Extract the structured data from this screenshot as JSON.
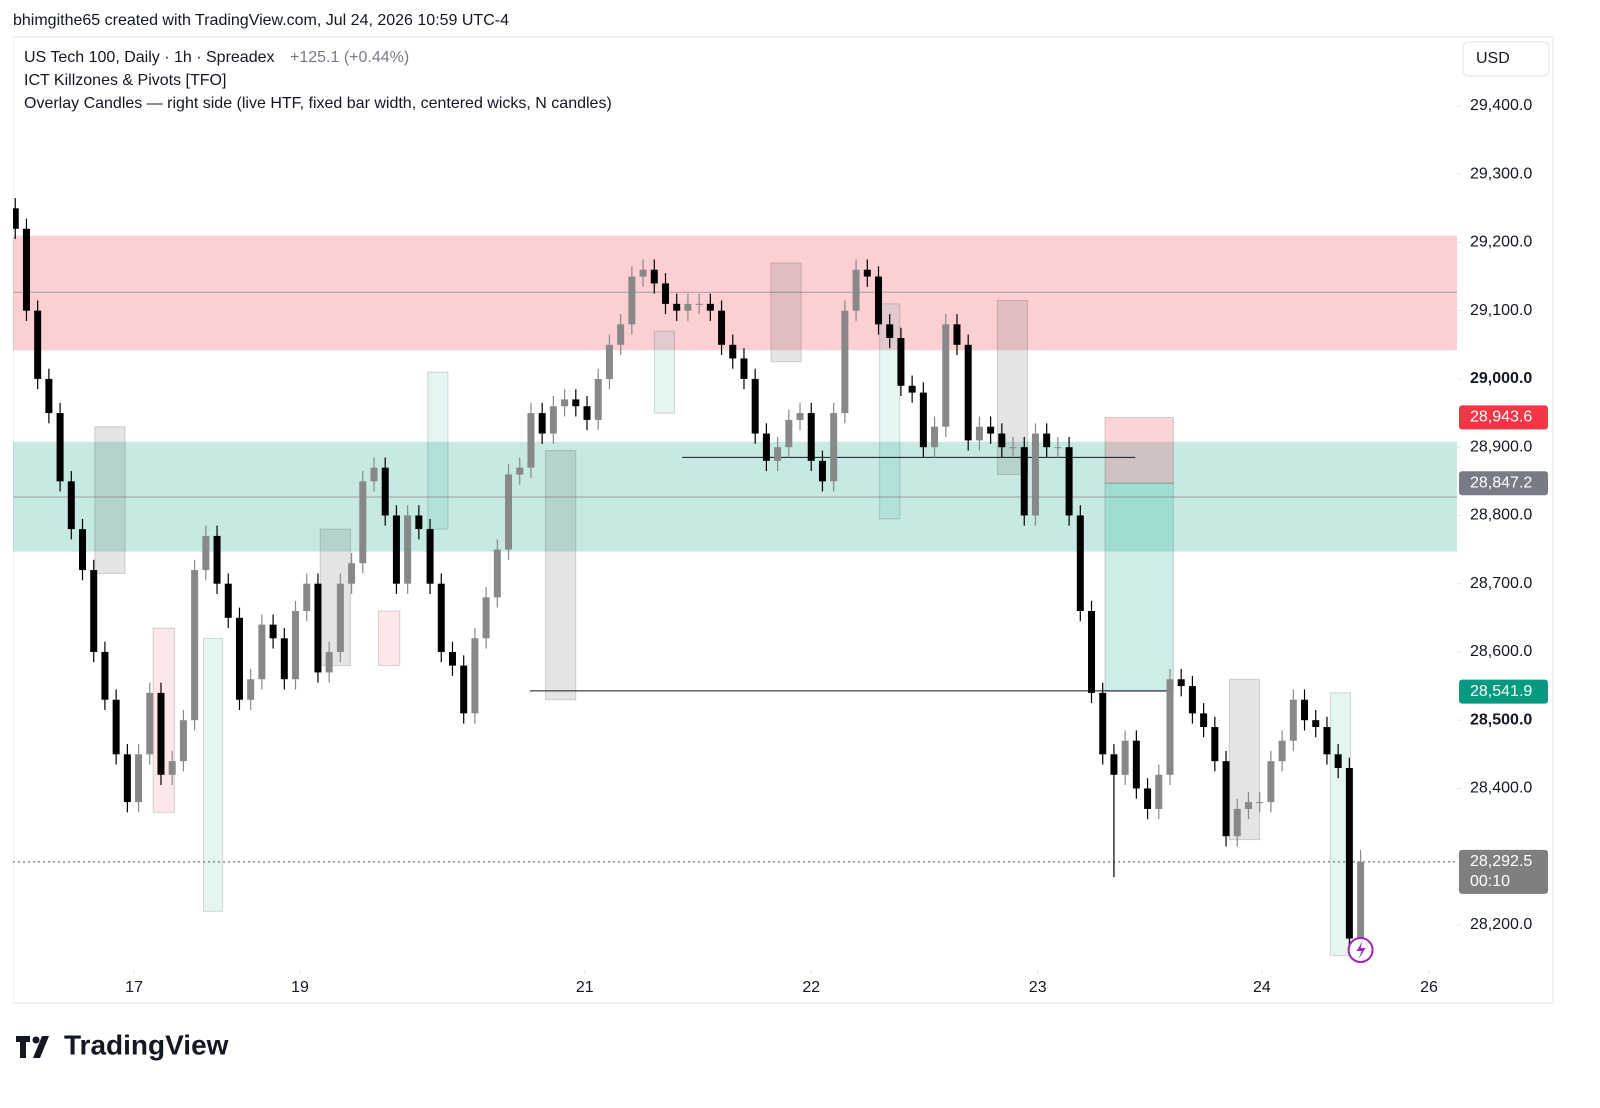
{
  "header": {
    "credit": "bhimgithe65 created with TradingView.com, Jul 24, 2026 10:59 UTC-4"
  },
  "legend": {
    "symbol": "US Tech 100, Daily · 1h · Spreadex",
    "change": "+125.1 (+0.44%)",
    "indicator_1": "ICT Killzones & Pivots [TFO]",
    "indicator_2": "Overlay Candles — right side (live HTF, fixed bar width, centered wicks, N candles)"
  },
  "currency": "USD",
  "footer": {
    "brand": "TradingView"
  },
  "chart_data": {
    "type": "candlestick",
    "up_color": "#888888",
    "down_color": "#000000",
    "open": [
      29250,
      29220,
      29100,
      29000,
      28950,
      28850,
      28780,
      28720,
      28600,
      28530,
      28450,
      28380,
      28450,
      28540,
      28420,
      28440,
      28500,
      28720,
      28770,
      28700,
      28650,
      28530,
      28560,
      28640,
      28620,
      28560,
      28660,
      28700,
      28570,
      28600,
      28700,
      28730,
      28850,
      28870,
      28800,
      28700,
      28800,
      28780,
      28700,
      28600,
      28580,
      28510,
      28620,
      28680,
      28750,
      28860,
      28870,
      28950,
      28920,
      28960,
      28970,
      28960,
      28940,
      29000,
      29050,
      29080,
      29150,
      29160,
      29140,
      29110,
      29100,
      29110,
      29110,
      29100,
      29050,
      29030,
      29000,
      28920,
      28880,
      28900,
      28940,
      28950,
      28880,
      28850,
      28950,
      29100,
      29160,
      29150,
      29080,
      29060,
      28990,
      28980,
      28900,
      28930,
      29080,
      29050,
      28910,
      28930,
      28920,
      28900,
      28900,
      28800,
      28920,
      28900,
      28900,
      28800,
      28660,
      28540,
      28450,
      28420,
      28470,
      28400,
      28370,
      28420,
      28560,
      28550,
      28510,
      28490,
      28440,
      28330,
      28370,
      28380,
      28380,
      28440,
      28470,
      28530,
      28500,
      28490,
      28450,
      28430,
      28180
    ],
    "high": [
      29265,
      29235,
      29115,
      29015,
      28965,
      28865,
      28795,
      28735,
      28615,
      28545,
      28465,
      28465,
      28555,
      28555,
      28455,
      28515,
      28735,
      28785,
      28785,
      28715,
      28665,
      28575,
      28655,
      28655,
      28635,
      28675,
      28715,
      28715,
      28615,
      28715,
      28745,
      28865,
      28885,
      28885,
      28815,
      28815,
      28815,
      28795,
      28715,
      28615,
      28595,
      28635,
      28695,
      28765,
      28875,
      28885,
      28965,
      28965,
      28975,
      28985,
      28985,
      28975,
      29015,
      29065,
      29095,
      29165,
      29175,
      29175,
      29155,
      29125,
      29125,
      29125,
      29125,
      29115,
      29065,
      29045,
      29015,
      28935,
      28915,
      28955,
      28965,
      28965,
      28895,
      28965,
      29115,
      29175,
      29175,
      29165,
      29095,
      29075,
      29005,
      28995,
      28945,
      29095,
      29095,
      29065,
      28945,
      28945,
      28935,
      28915,
      28915,
      28935,
      28935,
      28915,
      28915,
      28815,
      28675,
      28555,
      28465,
      28485,
      28485,
      28415,
      28435,
      28575,
      28575,
      28565,
      28525,
      28505,
      28455,
      28385,
      28395,
      28395,
      28455,
      28485,
      28545,
      28545,
      28515,
      28505,
      28465,
      28445,
      28310
    ],
    "low": [
      29205,
      29085,
      28985,
      28935,
      28835,
      28765,
      28705,
      28585,
      28515,
      28435,
      28365,
      28365,
      28435,
      28405,
      28405,
      28425,
      28485,
      28705,
      28685,
      28635,
      28515,
      28515,
      28545,
      28605,
      28545,
      28545,
      28645,
      28555,
      28555,
      28585,
      28685,
      28715,
      28835,
      28785,
      28685,
      28685,
      28765,
      28685,
      28585,
      28565,
      28495,
      28495,
      28605,
      28665,
      28735,
      28845,
      28855,
      28905,
      28905,
      28945,
      28945,
      28925,
      28925,
      28985,
      29035,
      29065,
      29135,
      29125,
      29095,
      29085,
      29085,
      29095,
      29085,
      29035,
      29015,
      28985,
      28905,
      28865,
      28865,
      28885,
      28925,
      28865,
      28835,
      28835,
      28935,
      29085,
      29135,
      29065,
      29045,
      28975,
      28965,
      28885,
      28885,
      28915,
      29035,
      28895,
      28895,
      28905,
      28885,
      28885,
      28785,
      28785,
      28885,
      28885,
      28785,
      28645,
      28525,
      28435,
      28270,
      28405,
      28385,
      28355,
      28355,
      28405,
      28535,
      28495,
      28475,
      28425,
      28315,
      28315,
      28355,
      28365,
      28365,
      28425,
      28455,
      28485,
      28475,
      28435,
      28415,
      28165,
      28165
    ],
    "close": [
      29220,
      29100,
      29000,
      28950,
      28850,
      28780,
      28720,
      28600,
      28530,
      28450,
      28380,
      28450,
      28540,
      28420,
      28440,
      28500,
      28720,
      28770,
      28700,
      28650,
      28530,
      28560,
      28640,
      28620,
      28560,
      28660,
      28700,
      28570,
      28600,
      28700,
      28730,
      28850,
      28870,
      28800,
      28700,
      28800,
      28780,
      28700,
      28600,
      28580,
      28510,
      28620,
      28680,
      28750,
      28860,
      28870,
      28950,
      28920,
      28960,
      28970,
      28960,
      28940,
      29000,
      29050,
      29080,
      29150,
      29160,
      29140,
      29110,
      29100,
      29110,
      29110,
      29100,
      29050,
      29030,
      29000,
      28920,
      28880,
      28900,
      28940,
      28950,
      28880,
      28850,
      28950,
      29100,
      29160,
      29150,
      29080,
      29060,
      28990,
      28980,
      28900,
      28930,
      29080,
      29050,
      28910,
      28930,
      28920,
      28900,
      28900,
      28800,
      28920,
      28900,
      28900,
      28800,
      28660,
      28540,
      28450,
      28420,
      28470,
      28400,
      28370,
      28420,
      28560,
      28550,
      28510,
      28490,
      28440,
      28330,
      28370,
      28380,
      28380,
      28440,
      28470,
      28530,
      28500,
      28490,
      28450,
      28430,
      28180,
      28292.5
    ],
    "xlim": [
      -0.2,
      128.6
    ],
    "xticks": [
      {
        "value": 10.6,
        "label": "17"
      },
      {
        "value": 25.4,
        "label": "19"
      },
      {
        "value": 50.8,
        "label": "21"
      },
      {
        "value": 71.0,
        "label": "22"
      },
      {
        "value": 91.2,
        "label": "23"
      },
      {
        "value": 111.2,
        "label": "24"
      },
      {
        "value": 126.1,
        "label": "26"
      }
    ],
    "ylim": [
      28134,
      29501
    ],
    "yticks": [
      {
        "value": 28200,
        "label": "28,200.0"
      },
      {
        "value": 28300,
        "label": "28,300.0"
      },
      {
        "value": 28400,
        "label": "28,400.0"
      },
      {
        "value": 28500,
        "label": "28,500.0"
      },
      {
        "value": 28600,
        "label": "28,600.0"
      },
      {
        "value": 28700,
        "label": "28,700.0"
      },
      {
        "value": 28800,
        "label": "28,800.0"
      },
      {
        "value": 28900,
        "label": "28,900.0"
      },
      {
        "value": 29000,
        "label": "29,000.0"
      },
      {
        "value": 29100,
        "label": "29,100.0"
      },
      {
        "value": 29200,
        "label": "29,200.0"
      },
      {
        "value": 29300,
        "label": "29,300.0"
      },
      {
        "value": 29400,
        "label": "29,400.0"
      }
    ],
    "zones": [
      {
        "top": 29210,
        "bottom": 29042,
        "mid": 29127,
        "color": "rgba(242,54,69,0.24)"
      },
      {
        "top": 28908,
        "bottom": 28747,
        "mid": 28827,
        "color": "rgba(34,171,148,0.26)"
      }
    ],
    "levels": [
      {
        "price": 28885,
        "from": 59.5,
        "to": 99.9
      },
      {
        "price": 28543,
        "from": 45.9,
        "to": 103.2
      }
    ],
    "boxes": [
      {
        "from": 7.1,
        "to": 9.8,
        "top": 28930,
        "bottom": 28715,
        "color": "rgba(120,120,120,0.2)"
      },
      {
        "from": 12.3,
        "to": 14.2,
        "top": 28635,
        "bottom": 28365,
        "color": "rgba(242,54,69,0.12)"
      },
      {
        "from": 16.8,
        "to": 18.5,
        "top": 28620,
        "bottom": 28220,
        "color": "rgba(34,171,148,0.12)"
      },
      {
        "from": 27.2,
        "to": 29.9,
        "top": 28780,
        "bottom": 28580,
        "color": "rgba(120,120,120,0.2)"
      },
      {
        "from": 32.4,
        "to": 34.3,
        "top": 28660,
        "bottom": 28580,
        "color": "rgba(242,54,69,0.12)"
      },
      {
        "from": 36.8,
        "to": 38.6,
        "top": 29010,
        "bottom": 28780,
        "color": "rgba(34,171,148,0.12)"
      },
      {
        "from": 47.3,
        "to": 50.0,
        "top": 28895,
        "bottom": 28530,
        "color": "rgba(120,120,120,0.2)"
      },
      {
        "from": 57.0,
        "to": 58.8,
        "top": 29070,
        "bottom": 28950,
        "color": "rgba(34,171,148,0.12)"
      },
      {
        "from": 67.4,
        "to": 70.1,
        "top": 29170,
        "bottom": 29025,
        "color": "rgba(120,120,120,0.2)"
      },
      {
        "from": 77.1,
        "to": 78.9,
        "top": 29110,
        "bottom": 28795,
        "color": "rgba(34,171,148,0.12)"
      },
      {
        "from": 87.6,
        "to": 90.3,
        "top": 29115,
        "bottom": 28860,
        "color": "rgba(120,120,120,0.2)"
      },
      {
        "from": 97.2,
        "to": 103.3,
        "top": 28943.6,
        "bottom": 28847.2,
        "color": "rgba(242,54,69,0.22)"
      },
      {
        "from": 97.2,
        "to": 103.3,
        "top": 28847.2,
        "bottom": 28541.9,
        "color": "rgba(34,171,148,0.22)"
      },
      {
        "from": 108.3,
        "to": 111.0,
        "top": 28560,
        "bottom": 28325,
        "color": "rgba(120,120,120,0.2)"
      },
      {
        "from": 117.3,
        "to": 119.1,
        "top": 28540,
        "bottom": 28155,
        "color": "rgba(34,171,148,0.12)"
      }
    ],
    "price_tags": [
      {
        "value": 28943.6,
        "label": "28,943.6",
        "color": "#f23645"
      },
      {
        "value": 28847.2,
        "label": "28,847.2",
        "color": "#787b86"
      },
      {
        "value": 28541.9,
        "label": "28,541.9",
        "color": "#089981"
      }
    ],
    "last_price": {
      "value": 28292.5,
      "label": "28,292.5",
      "countdown": "00:10",
      "color": "#7f7f7f"
    }
  }
}
